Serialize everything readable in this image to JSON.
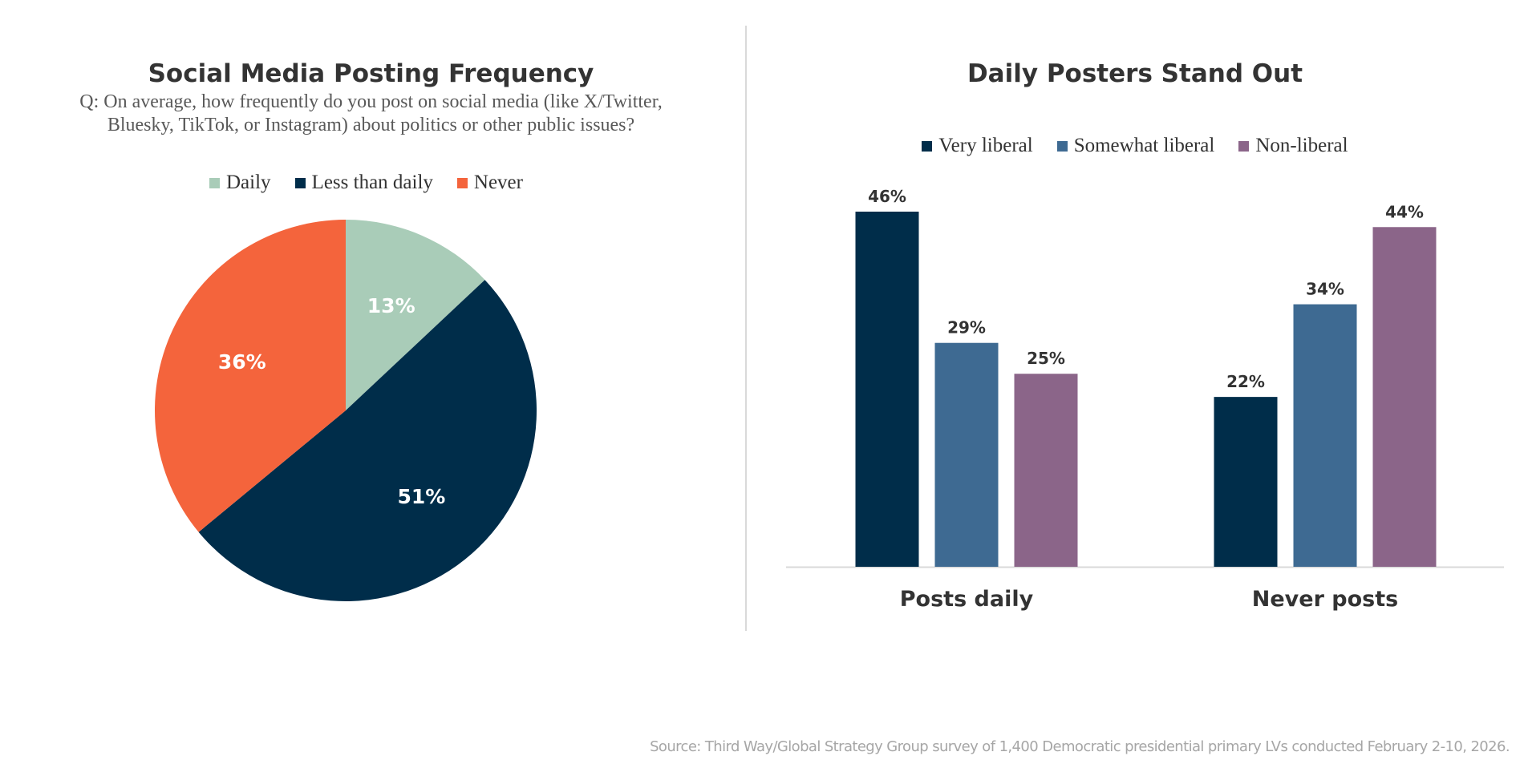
{
  "source_note": "Source: Third Way/Global Strategy Group survey of 1,400 Democratic presidential primary LVs conducted February 2-10, 2026.",
  "chart_data": [
    {
      "type": "pie",
      "title": "Social Media Posting Frequency",
      "subtitle_lines": [
        "Q: On average, how frequently do you post on social media (like X/Twitter,",
        "Bluesky, TikTok, or Instagram) about politics or other public issues?"
      ],
      "legend": [
        {
          "label": "Daily",
          "color": "#A9CCB8"
        },
        {
          "label": "Less than daily",
          "color": "#002D4A"
        },
        {
          "label": "Never",
          "color": "#F4643C"
        }
      ],
      "legend_position": "top",
      "slices": [
        {
          "label": "Daily",
          "value": 13,
          "display": "13%",
          "color": "#A9CCB8"
        },
        {
          "label": "Less than daily",
          "value": 51,
          "display": "51%",
          "color": "#002D4A"
        },
        {
          "label": "Never",
          "value": 36,
          "display": "36%",
          "color": "#F4643C"
        }
      ]
    },
    {
      "type": "bar",
      "title": "Daily Posters Stand Out",
      "categories": [
        "Posts daily",
        "Never posts"
      ],
      "series": [
        {
          "name": "Very liberal",
          "color": "#002D4A",
          "values": [
            46,
            22
          ],
          "labels": [
            "46%",
            "22%"
          ]
        },
        {
          "name": "Somewhat liberal",
          "color": "#3E6A92",
          "values": [
            29,
            34
          ],
          "labels": [
            "29%",
            "34%"
          ]
        },
        {
          "name": "Non-liberal",
          "color": "#8B6589",
          "values": [
            25,
            44
          ],
          "labels": [
            "25%",
            "44%"
          ]
        }
      ],
      "legend_position": "top",
      "ylim": [
        0,
        46
      ],
      "grid": false
    }
  ]
}
